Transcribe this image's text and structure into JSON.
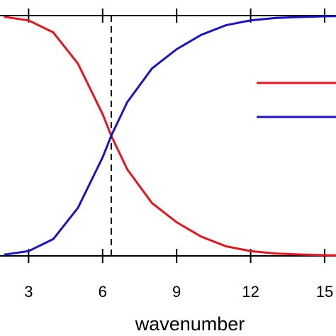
{
  "chart_data": {
    "type": "line",
    "x_label": "wavenumber",
    "x": [
      2,
      3,
      4,
      5,
      6,
      6.35,
      7,
      8,
      9,
      10,
      11,
      12,
      13,
      14,
      15,
      15.5
    ],
    "series": [
      {
        "color": "#e8141c",
        "values": [
          0.995,
          0.98,
          0.93,
          0.8,
          0.59,
          0.5,
          0.36,
          0.22,
          0.14,
          0.08,
          0.04,
          0.02,
          0.01,
          0.006,
          0.003,
          0.002
        ]
      },
      {
        "color": "#1a14c8",
        "values": [
          0.005,
          0.02,
          0.07,
          0.2,
          0.41,
          0.5,
          0.64,
          0.78,
          0.86,
          0.92,
          0.96,
          0.98,
          0.99,
          0.994,
          0.997,
          0.998
        ]
      }
    ],
    "xlim": [
      1.84,
      15.46
    ],
    "ylim": [
      0,
      1
    ],
    "xticks": [
      3,
      6,
      9,
      12,
      15
    ],
    "vline": 6.35,
    "legend": true
  }
}
